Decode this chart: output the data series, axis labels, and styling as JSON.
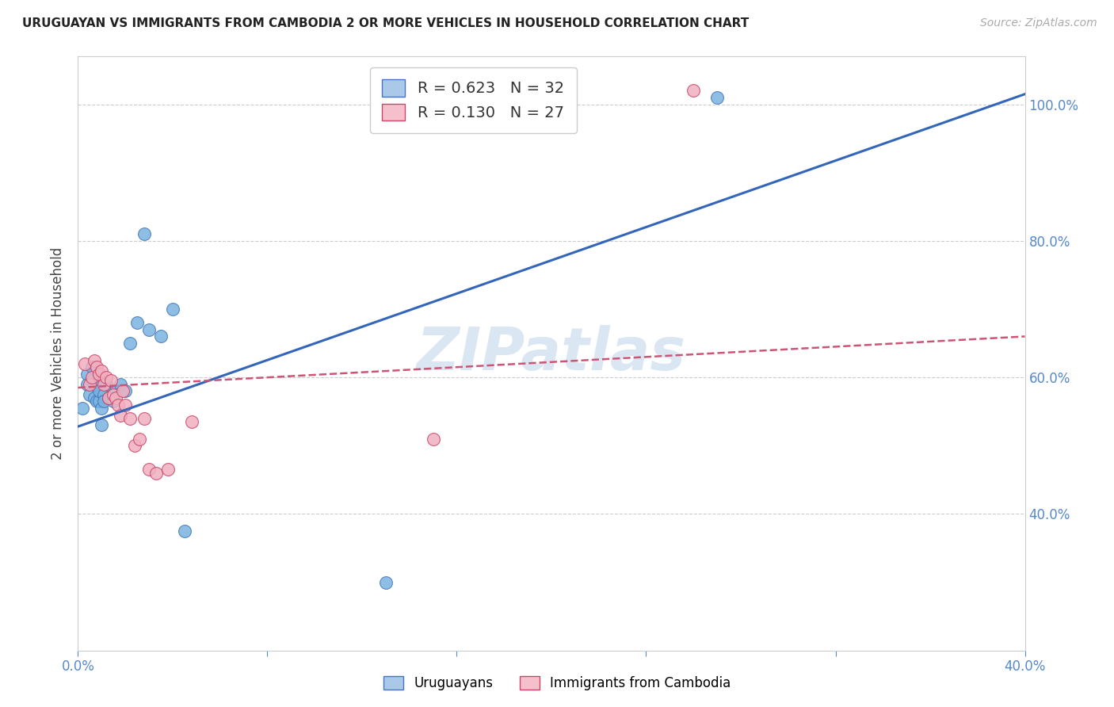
{
  "title": "URUGUAYAN VS IMMIGRANTS FROM CAMBODIA 2 OR MORE VEHICLES IN HOUSEHOLD CORRELATION CHART",
  "source": "Source: ZipAtlas.com",
  "ylabel": "2 or more Vehicles in Household",
  "xlim": [
    0.0,
    0.4
  ],
  "ylim": [
    0.2,
    1.07
  ],
  "yticks": [
    0.4,
    0.6,
    0.8,
    1.0
  ],
  "ytick_labels": [
    "40.0%",
    "60.0%",
    "80.0%",
    "100.0%"
  ],
  "xticks": [
    0.0,
    0.08,
    0.16,
    0.24,
    0.32,
    0.4
  ],
  "xtick_labels_show": [
    "0.0%",
    "",
    "",
    "",
    "",
    "40.0%"
  ],
  "background_color": "#ffffff",
  "watermark": "ZIPatlas",
  "legend_entries": [
    {
      "label": "R = 0.623   N = 32",
      "color": "#7ab3e0"
    },
    {
      "label": "R = 0.130   N = 27",
      "color": "#f0b0c0"
    }
  ],
  "uruguayans_x": [
    0.002,
    0.004,
    0.004,
    0.005,
    0.006,
    0.006,
    0.007,
    0.007,
    0.008,
    0.008,
    0.009,
    0.009,
    0.01,
    0.01,
    0.011,
    0.011,
    0.012,
    0.013,
    0.014,
    0.015,
    0.016,
    0.018,
    0.02,
    0.022,
    0.025,
    0.028,
    0.03,
    0.035,
    0.04,
    0.045,
    0.13,
    0.27
  ],
  "uruguayans_y": [
    0.555,
    0.605,
    0.59,
    0.575,
    0.615,
    0.595,
    0.59,
    0.57,
    0.565,
    0.59,
    0.565,
    0.58,
    0.53,
    0.555,
    0.575,
    0.565,
    0.59,
    0.57,
    0.57,
    0.565,
    0.58,
    0.59,
    0.58,
    0.65,
    0.68,
    0.81,
    0.67,
    0.66,
    0.7,
    0.375,
    0.3,
    1.01
  ],
  "cambodians_x": [
    0.003,
    0.005,
    0.006,
    0.007,
    0.008,
    0.009,
    0.01,
    0.011,
    0.012,
    0.013,
    0.014,
    0.015,
    0.016,
    0.017,
    0.018,
    0.019,
    0.02,
    0.022,
    0.024,
    0.026,
    0.028,
    0.03,
    0.033,
    0.038,
    0.048,
    0.15,
    0.26
  ],
  "cambodians_y": [
    0.62,
    0.59,
    0.6,
    0.625,
    0.615,
    0.605,
    0.61,
    0.59,
    0.6,
    0.57,
    0.595,
    0.575,
    0.57,
    0.56,
    0.545,
    0.58,
    0.56,
    0.54,
    0.5,
    0.51,
    0.54,
    0.465,
    0.46,
    0.465,
    0.535,
    0.51,
    1.02
  ],
  "uru_color": "#7ab3e0",
  "uru_edge": "#4477bb",
  "cam_color": "#f0b0c0",
  "cam_edge": "#cc4466",
  "blue_line_x": [
    0.0,
    0.4
  ],
  "blue_line_y": [
    0.528,
    1.015
  ],
  "pink_line_x": [
    0.0,
    0.4
  ],
  "pink_line_y": [
    0.585,
    0.66
  ],
  "blue_line_color": "#3366bb",
  "pink_line_color": "#cc5577",
  "grid_color": "#cccccc",
  "tick_color": "#5588cc",
  "axis_color": "#cccccc"
}
